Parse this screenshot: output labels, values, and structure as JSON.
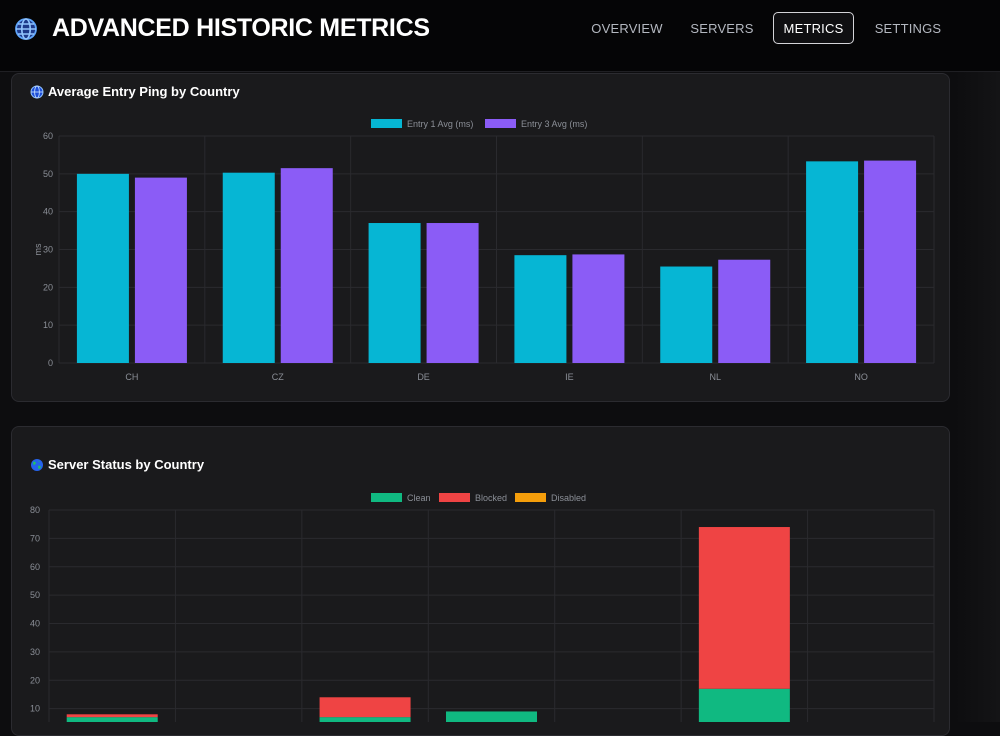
{
  "header": {
    "title": "ADVANCED HISTORIC METRICS",
    "icon": "globe-icon",
    "nav": [
      {
        "label": "OVERVIEW",
        "active": false
      },
      {
        "label": "SERVERS",
        "active": false
      },
      {
        "label": "METRICS",
        "active": true
      },
      {
        "label": "SETTINGS",
        "active": false
      }
    ]
  },
  "cards": {
    "ping_title": "Average Entry Ping by Country",
    "status_title": "Server Status by Country"
  },
  "colors": {
    "entry1": "#06b6d4",
    "entry3": "#8b5cf6",
    "clean": "#10b981",
    "blocked": "#ef4444",
    "disabled": "#f59e0b"
  },
  "chart_data": [
    {
      "type": "bar",
      "title": "Average Entry Ping by Country",
      "categories": [
        "CH",
        "CZ",
        "DE",
        "IE",
        "NL",
        "NO"
      ],
      "series": [
        {
          "name": "Entry 1 Avg (ms)",
          "values": [
            50,
            50.3,
            37,
            28.5,
            25.5,
            53.3
          ]
        },
        {
          "name": "Entry 3 Avg (ms)",
          "values": [
            49,
            51.5,
            37,
            28.7,
            27.3,
            53.5
          ]
        }
      ],
      "xlabel": "",
      "ylabel": "ms",
      "ylim": [
        0,
        60
      ],
      "yticks": [
        0,
        10,
        20,
        30,
        40,
        50,
        60
      ],
      "legend": "top-center",
      "grid": true
    },
    {
      "type": "bar",
      "stacked": true,
      "title": "Server Status by Country",
      "categories": [
        "",
        "",
        "",
        "",
        "",
        "",
        ""
      ],
      "series": [
        {
          "name": "Clean",
          "values": [
            7,
            0,
            7,
            9,
            0,
            17,
            0
          ]
        },
        {
          "name": "Blocked",
          "values": [
            1,
            0,
            7,
            0,
            0,
            57,
            0
          ]
        },
        {
          "name": "Disabled",
          "values": [
            0,
            0,
            0,
            0,
            0,
            0,
            0
          ]
        }
      ],
      "xlabel": "",
      "ylabel": "",
      "ylim": [
        0,
        80
      ],
      "yticks": [
        10,
        20,
        30,
        40,
        50,
        60,
        70,
        80
      ],
      "legend": "top-center",
      "grid": true
    }
  ]
}
